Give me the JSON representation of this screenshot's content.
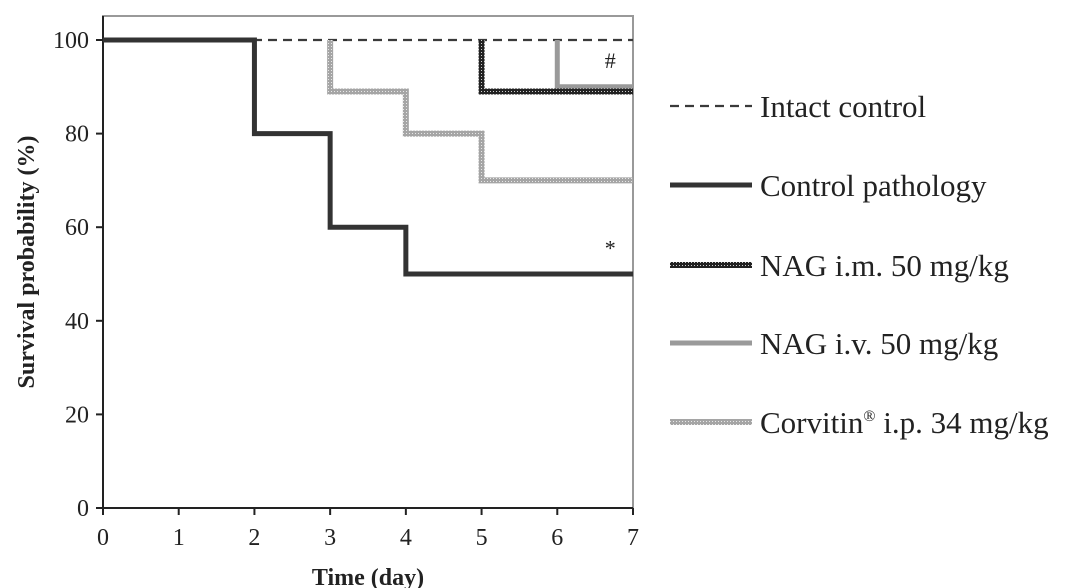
{
  "chart_data": {
    "type": "line",
    "step": true,
    "xlabel": "Time (day)",
    "ylabel": "Survival probability (%)",
    "xlim": [
      0,
      7
    ],
    "ylim": [
      0,
      100
    ],
    "x_ticks": [
      "0",
      "1",
      "2",
      "3",
      "4",
      "5",
      "6",
      "7"
    ],
    "y_ticks": [
      "0",
      "20",
      "40",
      "60",
      "80",
      "100"
    ],
    "grid": false,
    "legend_position": "right",
    "series": [
      {
        "name": "Intact control",
        "style": "dashed",
        "color": "#3a3a3a",
        "points": [
          [
            0,
            100
          ],
          [
            7,
            100
          ]
        ]
      },
      {
        "name": "Control pathology",
        "style": "solid-thick",
        "color": "#333333",
        "points": [
          [
            0,
            100
          ],
          [
            2,
            100
          ],
          [
            2,
            80
          ],
          [
            3,
            80
          ],
          [
            3,
            60
          ],
          [
            4,
            60
          ],
          [
            4,
            50
          ],
          [
            7,
            50
          ]
        ]
      },
      {
        "name": "NAG i.m. 50 mg/kg",
        "style": "dark-dotted",
        "color": "#2b2b2b",
        "points": [
          [
            5,
            100
          ],
          [
            5,
            89
          ],
          [
            7,
            89
          ]
        ]
      },
      {
        "name": "NAG i.v. 50 mg/kg",
        "style": "solid-gray",
        "color": "#9a9a9a",
        "points": [
          [
            6,
            100
          ],
          [
            6,
            90
          ],
          [
            7,
            90
          ]
        ]
      },
      {
        "name": "Corvitin",
        "name_superscript": "®",
        "name_suffix": " i.p. 34 mg/kg",
        "style": "light-dotted",
        "color": "#a8a8a8",
        "points": [
          [
            3,
            100
          ],
          [
            3,
            89
          ],
          [
            4,
            89
          ],
          [
            4,
            80
          ],
          [
            5,
            80
          ],
          [
            5,
            70
          ],
          [
            7,
            70
          ]
        ]
      }
    ],
    "annotations": [
      {
        "text": "#",
        "x": 6.7,
        "y": 94
      },
      {
        "text": "*",
        "x": 6.7,
        "y": 54
      }
    ]
  }
}
